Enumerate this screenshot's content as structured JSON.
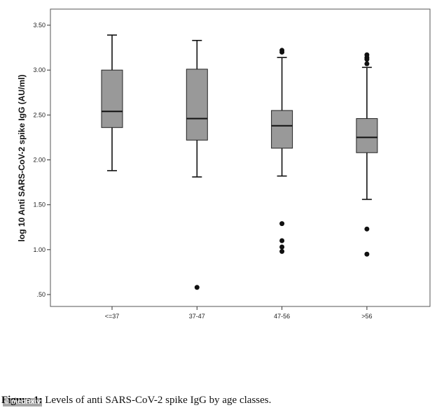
{
  "chart_data": {
    "type": "box",
    "ylabel": "log 10 Anti SARS-CoV-2 spike IgG (AU/ml)",
    "xlabel": "",
    "ylim": [
      0.4,
      3.65
    ],
    "y_ticks": [
      ".50",
      "1.00",
      "1.50",
      "2.00",
      "2.50",
      "3.00",
      "3.50"
    ],
    "y_tick_values": [
      0.5,
      1.0,
      1.5,
      2.0,
      2.5,
      3.0,
      3.5
    ],
    "categories": [
      "<=37",
      "37-47",
      "47-56",
      ">56"
    ],
    "boxes": [
      {
        "category": "<=37",
        "whisker_low": 1.88,
        "q1": 2.36,
        "median": 2.54,
        "q3": 3.0,
        "whisker_high": 3.39,
        "outliers": []
      },
      {
        "category": "37-47",
        "whisker_low": 1.81,
        "q1": 2.22,
        "median": 2.46,
        "q3": 3.01,
        "whisker_high": 3.33,
        "outliers": [
          0.58
        ]
      },
      {
        "category": "47-56",
        "whisker_low": 1.82,
        "q1": 2.13,
        "median": 2.38,
        "q3": 2.55,
        "whisker_high": 3.14,
        "outliers": [
          3.22,
          3.2,
          1.29,
          1.1,
          1.03,
          0.98
        ]
      },
      {
        "category": ">56",
        "whisker_low": 1.56,
        "q1": 2.08,
        "median": 2.25,
        "q3": 2.46,
        "whisker_high": 3.03,
        "outliers": [
          3.17,
          3.14,
          3.12,
          3.07,
          1.23,
          0.95
        ]
      }
    ],
    "grid": false,
    "legend": "none",
    "box_color": "#999999"
  },
  "caption": {
    "prefix": "Figure 1:",
    "text": " Levels of anti SARS-CoV-2 spike IgG by age classes."
  },
  "watermark": "© medRxiv"
}
